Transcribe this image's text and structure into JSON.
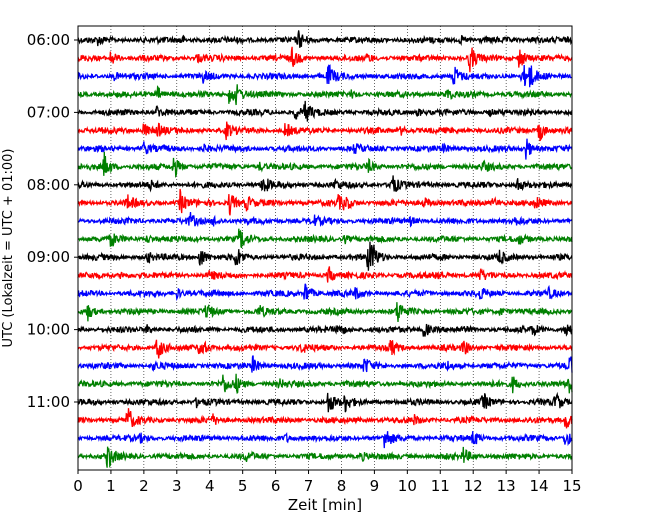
{
  "chart_data": {
    "type": "line",
    "title": "",
    "xlabel": "Zeit  [min]",
    "ylabel": "UTC (Lokalzeit = UTC + 01:00)",
    "xlim": [
      0,
      15
    ],
    "x_ticks": [
      "0",
      "1",
      "2",
      "3",
      "4",
      "5",
      "6",
      "7",
      "8",
      "9",
      "10",
      "11",
      "12",
      "13",
      "14",
      "15"
    ],
    "y_ticks": [
      {
        "label": "06:00",
        "row": 0
      },
      {
        "label": "07:00",
        "row": 4
      },
      {
        "label": "08:00",
        "row": 8
      },
      {
        "label": "09:00",
        "row": 12
      },
      {
        "label": "10:00",
        "row": 16
      },
      {
        "label": "11:00",
        "row": 20
      }
    ],
    "grid": "vertical dotted at each minute",
    "colors": [
      "#000000",
      "#ff0000",
      "#0000ff",
      "#008000"
    ],
    "rows_per_hour": 4,
    "minutes_per_row": 15,
    "series": [
      {
        "name": "06:00",
        "color": "#000000",
        "events": [
          [
            6.7,
            0.6
          ],
          [
            3.1,
            0.3
          ],
          [
            11.6,
            0.3
          ],
          [
            0.6,
            0.25
          ],
          [
            13.8,
            0.25
          ]
        ]
      },
      {
        "name": "06:15",
        "color": "#ff0000",
        "events": [
          [
            1.0,
            0.6
          ],
          [
            6.5,
            0.7
          ],
          [
            11.9,
            1.0
          ],
          [
            13.4,
            0.9
          ],
          [
            3.6,
            0.3
          ],
          [
            8.8,
            0.3
          ]
        ]
      },
      {
        "name": "06:30",
        "color": "#0000ff",
        "events": [
          [
            7.6,
            0.9
          ],
          [
            11.4,
            0.9
          ],
          [
            13.5,
            1.0
          ],
          [
            13.7,
            0.8
          ],
          [
            3.8,
            0.35
          ],
          [
            1.1,
            0.25
          ]
        ]
      },
      {
        "name": "06:45",
        "color": "#008000",
        "events": [
          [
            2.4,
            0.6
          ],
          [
            4.6,
            0.9
          ],
          [
            4.8,
            0.6
          ],
          [
            11.2,
            0.4
          ],
          [
            8.3,
            0.25
          ]
        ]
      },
      {
        "name": "07:00",
        "color": "#000000",
        "events": [
          [
            2.4,
            0.5
          ],
          [
            6.9,
            0.8
          ],
          [
            6.6,
            0.5
          ],
          [
            10.3,
            0.3
          ],
          [
            12.5,
            0.25
          ]
        ]
      },
      {
        "name": "07:15",
        "color": "#ff0000",
        "events": [
          [
            2.0,
            0.6
          ],
          [
            2.4,
            0.5
          ],
          [
            4.5,
            0.6
          ],
          [
            6.3,
            0.6
          ],
          [
            14.0,
            0.9
          ],
          [
            9.8,
            0.3
          ]
        ]
      },
      {
        "name": "07:30",
        "color": "#0000ff",
        "events": [
          [
            2.0,
            0.5
          ],
          [
            3.8,
            0.3
          ],
          [
            13.6,
            0.9
          ],
          [
            8.4,
            0.3
          ],
          [
            11.1,
            0.25
          ]
        ]
      },
      {
        "name": "07:45",
        "color": "#008000",
        "events": [
          [
            0.8,
            1.0
          ],
          [
            2.9,
            0.9
          ],
          [
            8.8,
            0.5
          ],
          [
            5.5,
            0.3
          ],
          [
            12.3,
            0.3
          ]
        ]
      },
      {
        "name": "08:00",
        "color": "#000000",
        "events": [
          [
            5.6,
            0.8
          ],
          [
            9.5,
            1.0
          ],
          [
            13.3,
            0.7
          ],
          [
            7.8,
            0.3
          ],
          [
            2.2,
            0.25
          ]
        ]
      },
      {
        "name": "08:15",
        "color": "#ff0000",
        "events": [
          [
            1.5,
            0.5
          ],
          [
            3.1,
            0.9
          ],
          [
            4.6,
            1.0
          ],
          [
            5.1,
            0.6
          ],
          [
            7.9,
            0.5
          ],
          [
            8.1,
            0.5
          ],
          [
            10.5,
            0.4
          ],
          [
            12.6,
            0.4
          ],
          [
            13.9,
            0.4
          ]
        ]
      },
      {
        "name": "08:30",
        "color": "#0000ff",
        "events": [
          [
            3.4,
            0.5
          ],
          [
            7.1,
            0.5
          ],
          [
            4.1,
            0.4
          ],
          [
            10.1,
            0.3
          ],
          [
            13.2,
            0.3
          ]
        ]
      },
      {
        "name": "08:45",
        "color": "#008000",
        "events": [
          [
            1.0,
            0.5
          ],
          [
            4.9,
            0.9
          ],
          [
            2.1,
            0.3
          ],
          [
            8.1,
            0.3
          ],
          [
            13.4,
            0.3
          ]
        ]
      },
      {
        "name": "09:00",
        "color": "#000000",
        "events": [
          [
            3.7,
            0.9
          ],
          [
            4.8,
            0.8
          ],
          [
            8.8,
            1.0
          ],
          [
            8.9,
            0.9
          ],
          [
            12.8,
            0.5
          ],
          [
            2.1,
            0.4
          ]
        ]
      },
      {
        "name": "09:15",
        "color": "#ff0000",
        "events": [
          [
            7.6,
            0.7
          ],
          [
            10.9,
            0.4
          ],
          [
            12.2,
            0.4
          ],
          [
            4.0,
            0.3
          ],
          [
            1.3,
            0.25
          ]
        ]
      },
      {
        "name": "09:30",
        "color": "#0000ff",
        "events": [
          [
            6.9,
            0.9
          ],
          [
            3.0,
            0.4
          ],
          [
            8.4,
            0.4
          ],
          [
            12.2,
            0.4
          ],
          [
            14.3,
            0.3
          ]
        ]
      },
      {
        "name": "09:45",
        "color": "#008000",
        "events": [
          [
            0.3,
            0.6
          ],
          [
            3.9,
            0.6
          ],
          [
            9.7,
            0.9
          ],
          [
            5.5,
            0.4
          ],
          [
            12.8,
            0.3
          ]
        ]
      },
      {
        "name": "10:00",
        "color": "#000000",
        "events": [
          [
            7.9,
            0.5
          ],
          [
            10.5,
            0.7
          ],
          [
            14.8,
            0.7
          ],
          [
            2.1,
            0.3
          ],
          [
            13.8,
            0.4
          ]
        ]
      },
      {
        "name": "10:15",
        "color": "#ff0000",
        "events": [
          [
            2.4,
            1.0
          ],
          [
            3.7,
            0.9
          ],
          [
            9.5,
            0.6
          ],
          [
            11.7,
            0.6
          ],
          [
            6.8,
            0.3
          ]
        ]
      },
      {
        "name": "10:30",
        "color": "#0000ff",
        "events": [
          [
            5.3,
            0.7
          ],
          [
            8.7,
            0.6
          ],
          [
            14.9,
            0.8
          ],
          [
            2.3,
            0.3
          ],
          [
            11.2,
            0.3
          ]
        ]
      },
      {
        "name": "10:45",
        "color": "#008000",
        "events": [
          [
            4.4,
            0.7
          ],
          [
            4.8,
            0.6
          ],
          [
            13.2,
            0.6
          ],
          [
            14.9,
            0.9
          ],
          [
            6.1,
            0.3
          ]
        ]
      },
      {
        "name": "11:00",
        "color": "#000000",
        "events": [
          [
            7.6,
            1.0
          ],
          [
            8.1,
            0.7
          ],
          [
            12.3,
            0.6
          ],
          [
            14.5,
            0.7
          ],
          [
            3.6,
            0.3
          ]
        ]
      },
      {
        "name": "11:15",
        "color": "#ff0000",
        "events": [
          [
            1.5,
            1.0
          ],
          [
            14.8,
            0.8
          ],
          [
            4.1,
            0.3
          ],
          [
            10.2,
            0.3
          ]
        ]
      },
      {
        "name": "11:30",
        "color": "#0000ff",
        "events": [
          [
            9.3,
            0.9
          ],
          [
            12.0,
            0.6
          ],
          [
            14.8,
            0.7
          ],
          [
            6.3,
            0.3
          ],
          [
            1.9,
            0.25
          ]
        ]
      },
      {
        "name": "11:45",
        "color": "#008000",
        "events": [
          [
            0.9,
            1.0
          ],
          [
            11.7,
            0.6
          ],
          [
            5.1,
            0.3
          ],
          [
            8.6,
            0.3
          ]
        ]
      }
    ]
  }
}
